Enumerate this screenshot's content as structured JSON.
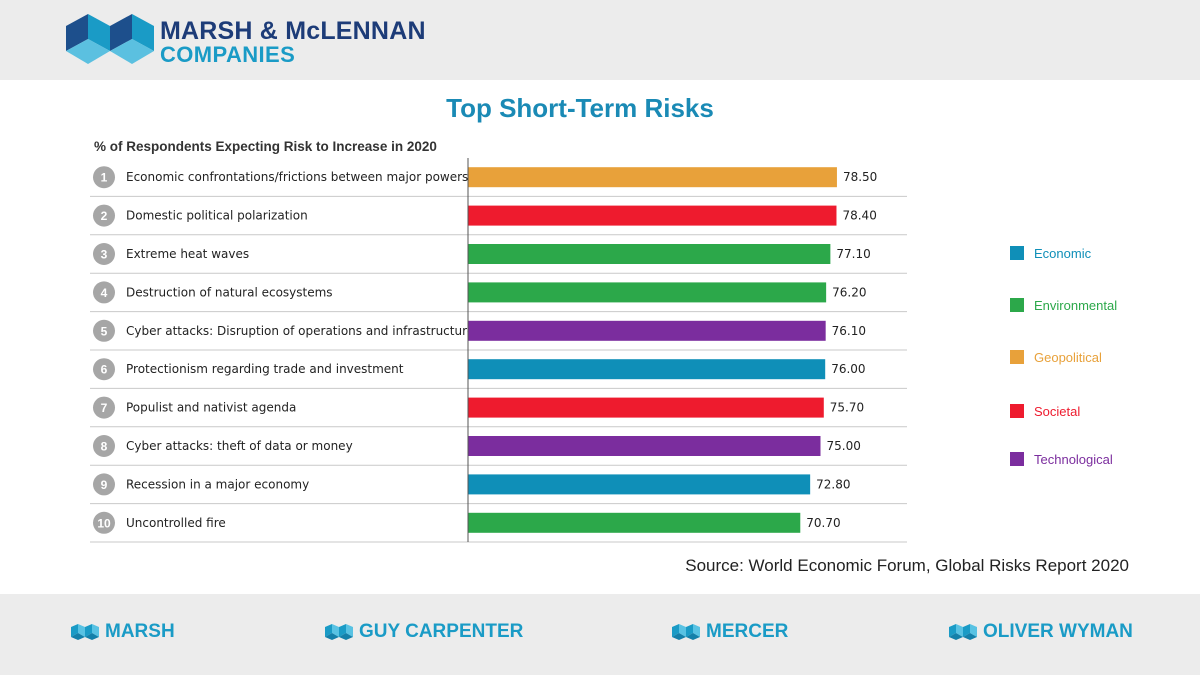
{
  "brand": {
    "logo_icon": "marsh-mclennan-logo-icon",
    "name_line1": "MARSH & McLENNAN",
    "name_line2": "COMPANIES"
  },
  "colors": {
    "Economic": "#0f8fb8",
    "Environmental": "#2ca84a",
    "Geopolitical": "#e8a13a",
    "Societal": "#ee1b2e",
    "Technological": "#7b2d9e",
    "number_badge": "#a6a6a6",
    "title": "#1a8ab5"
  },
  "chart_data": {
    "type": "bar",
    "orientation": "horizontal",
    "title": "Top Short-Term Risks",
    "subtitle": "% of Respondents Expecting Risk to Increase in 2020",
    "ranks": [
      "1",
      "2",
      "3",
      "4",
      "5",
      "6",
      "7",
      "8",
      "9",
      "10"
    ],
    "categories": [
      "Economic confrontations/frictions between major powers",
      "Domestic political polarization",
      "Extreme heat waves",
      "Destruction of natural ecosystems",
      "Cyber attacks: Disruption of operations and infrastructure",
      "Protectionism regarding trade and investment",
      "Populist and nativist agenda",
      "Cyber attacks: theft of data or money",
      "Recession in a major economy",
      "Uncontrolled fire"
    ],
    "values": [
      78.5,
      78.4,
      77.1,
      76.2,
      76.1,
      76.0,
      75.7,
      75.0,
      72.8,
      70.7
    ],
    "value_labels": [
      "78.50",
      "78.40",
      "77.10",
      "76.20",
      "76.10",
      "76.00",
      "75.70",
      "75.00",
      "72.80",
      "70.70"
    ],
    "risk_types": [
      "Geopolitical",
      "Societal",
      "Environmental",
      "Environmental",
      "Technological",
      "Economic",
      "Societal",
      "Technological",
      "Economic",
      "Environmental"
    ],
    "xlim": [
      0,
      100
    ],
    "grid": false,
    "legend_position": "right",
    "legend": [
      "Economic",
      "Environmental",
      "Geopolitical",
      "Societal",
      "Technological"
    ]
  },
  "source": "Source: World Economic Forum, Global Risks Report 2020",
  "footer": {
    "brands": [
      {
        "label": "MARSH",
        "icon": "marsh-icon"
      },
      {
        "label": "GUY CARPENTER",
        "icon": "guy-carpenter-icon"
      },
      {
        "label": "MERCER",
        "icon": "mercer-icon"
      },
      {
        "label": "OLIVER WYMAN",
        "icon": "oliver-wyman-icon"
      }
    ]
  }
}
